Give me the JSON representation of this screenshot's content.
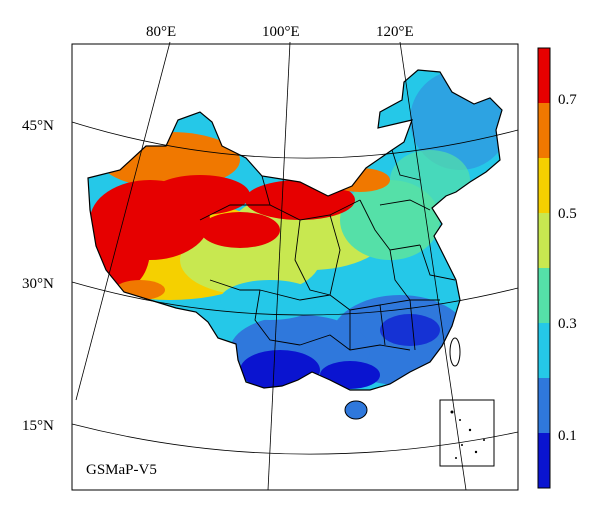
{
  "map": {
    "product_label": "GSMaP-V5",
    "longitude_labels": [
      "80°E",
      "100°E",
      "120°E"
    ],
    "latitude_labels": [
      "45°N",
      "30°N",
      "15°N"
    ]
  },
  "colorbar": {
    "tick_labels": [
      "0.7",
      "0.5",
      "0.3",
      "0.1"
    ],
    "colors": [
      "#e60000",
      "#f07800",
      "#f5d000",
      "#c8e850",
      "#55e0a8",
      "#25c8e8",
      "#2f78dc",
      "#0a14d0"
    ]
  },
  "colors": {
    "ocean_background": "#ffffff",
    "border": "#000000"
  }
}
